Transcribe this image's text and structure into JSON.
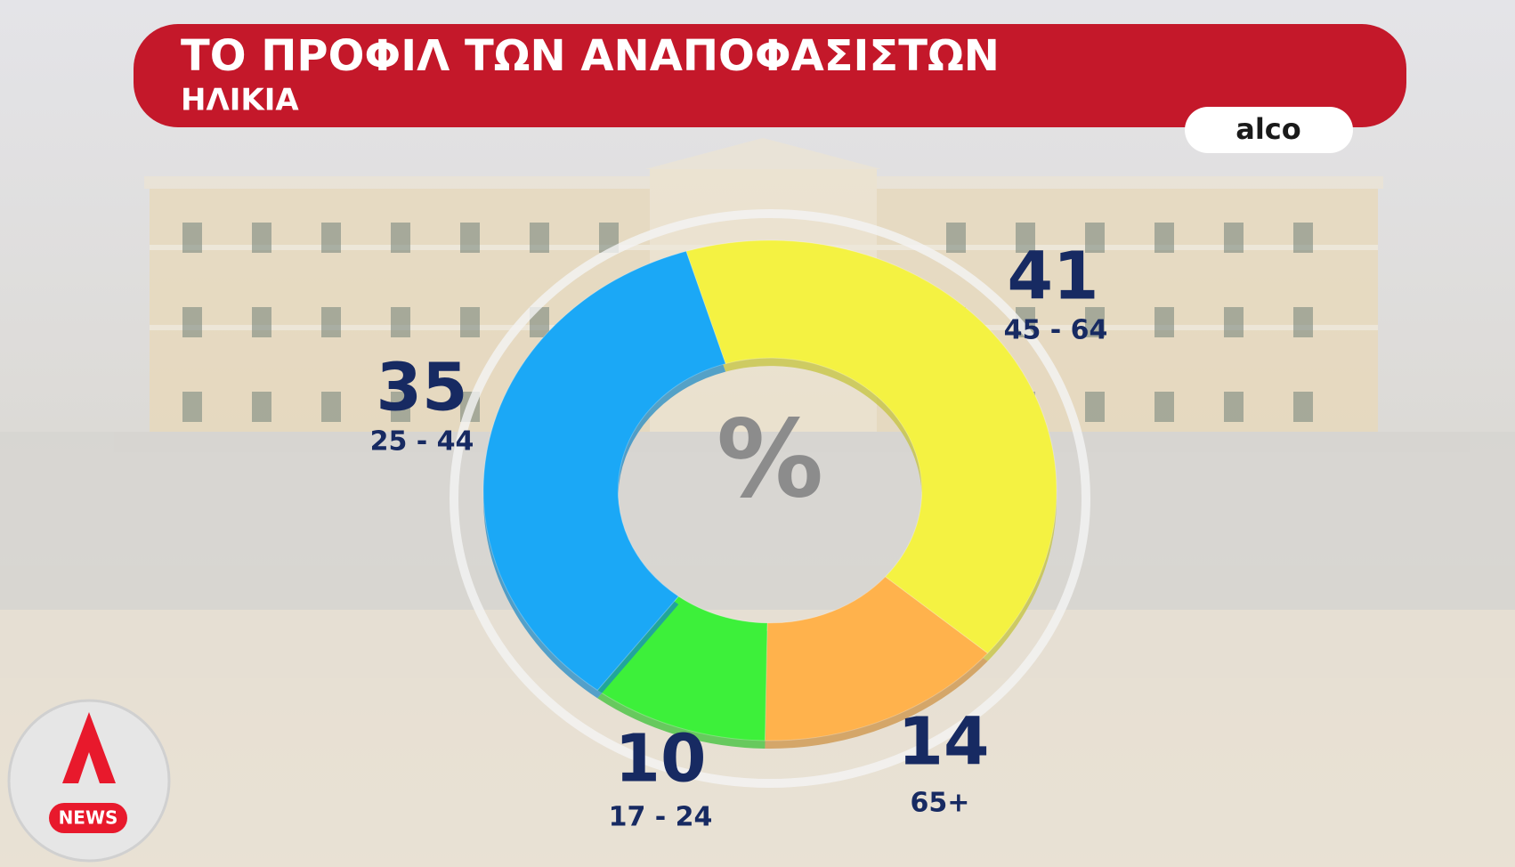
{
  "chart_data": {
    "type": "pie",
    "donut": true,
    "title": "ΤΟ ΠΡΟΦΙΛ ΤΩΝ ΑΝΑΠΟΦΑΣΙΣΤΩΝ",
    "subtitle": "ΗΛΙΚΙΑ",
    "source": "alco",
    "center_label": "%",
    "categories": [
      "45 - 64",
      "65+",
      "17 - 24",
      "25 - 44"
    ],
    "values": [
      41,
      14,
      10,
      35
    ],
    "colors": [
      "#f4f242",
      "#ffb24c",
      "#3df03a",
      "#1ba8f6"
    ]
  },
  "brand": "NEWS"
}
